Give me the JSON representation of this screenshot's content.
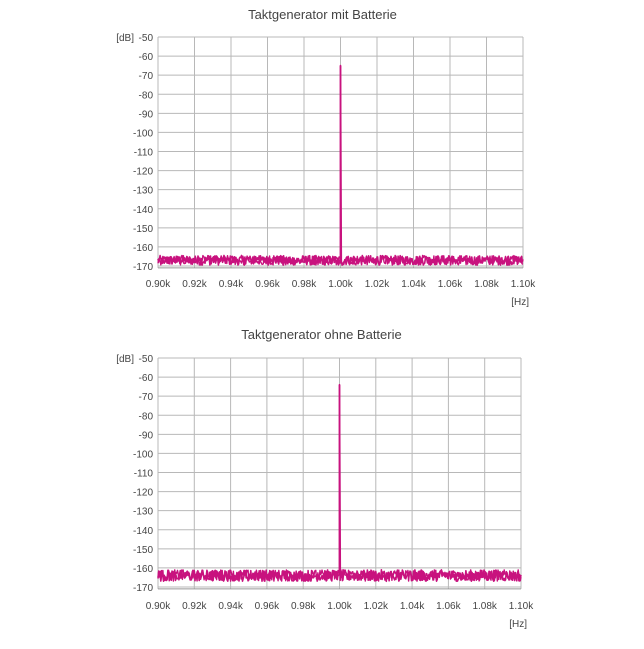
{
  "colors": {
    "trace": "#c8127e",
    "grid": "#b8b8b8",
    "frame": "#999999",
    "text": "#444444"
  },
  "chart_data": [
    {
      "type": "line",
      "title": "Taktgenerator mit Batterie",
      "ylabel_unit": "[dB]",
      "xlabel_unit": "[Hz]",
      "xlim": [
        0.9,
        1.1
      ],
      "ylim": [
        -171,
        -50
      ],
      "x_ticks": [
        "0.90k",
        "0.92k",
        "0.94k",
        "0.96k",
        "0.98k",
        "1.00k",
        "1.02k",
        "1.04k",
        "1.06k",
        "1.08k",
        "1.10k"
      ],
      "y_ticks": [
        "-50",
        "-60",
        "-70",
        "-80",
        "-90",
        "-100",
        "-110",
        "-120",
        "-130",
        "-140",
        "-150",
        "-160",
        "-170"
      ],
      "grid": true,
      "series": [
        {
          "noise_floor_db": -167,
          "noise_amplitude_db": 2.5,
          "peak": {
            "x": 1.0,
            "y": -65
          }
        }
      ]
    },
    {
      "type": "line",
      "title": "Taktgenerator ohne Batterie",
      "ylabel_unit": "[dB]",
      "xlabel_unit": "[Hz]",
      "xlim": [
        0.9,
        1.1
      ],
      "ylim": [
        -171,
        -50
      ],
      "x_ticks": [
        "0.90k",
        "0.92k",
        "0.94k",
        "0.96k",
        "0.98k",
        "1.00k",
        "1.02k",
        "1.04k",
        "1.06k",
        "1.08k",
        "1.10k"
      ],
      "y_ticks": [
        "-50",
        "-60",
        "-70",
        "-80",
        "-90",
        "-100",
        "-110",
        "-120",
        "-130",
        "-140",
        "-150",
        "-160",
        "-170"
      ],
      "grid": true,
      "series": [
        {
          "noise_floor_db": -164,
          "noise_amplitude_db": 3,
          "peak": {
            "x": 1.0,
            "y": -64
          }
        }
      ]
    }
  ]
}
